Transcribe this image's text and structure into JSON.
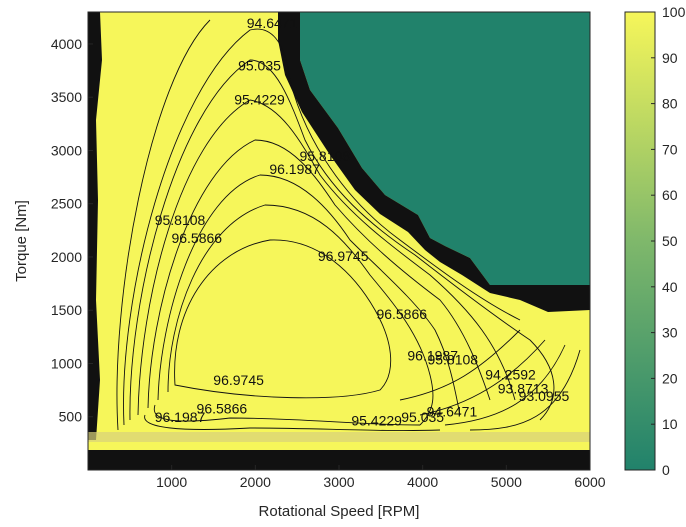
{
  "chart_data": {
    "type": "contour",
    "xlabel": "Rotational Speed [RPM]",
    "ylabel": "Torque [Nm]",
    "xlim": [
      0,
      6000
    ],
    "ylim": [
      0,
      4300
    ],
    "xticks": [
      "1000",
      "2000",
      "3000",
      "4000",
      "5000",
      "6000"
    ],
    "yticks": [
      "500",
      "1000",
      "1500",
      "2000",
      "2500",
      "3000",
      "3500",
      "4000"
    ],
    "colorbar": {
      "ticks": [
        "0",
        "10",
        "20",
        "30",
        "40",
        "50",
        "60",
        "70",
        "80",
        "90",
        "100"
      ],
      "range": [
        0,
        100
      ],
      "low_color": "#21826b",
      "high_color": "#f6f65a"
    },
    "contour_levels": [
      "94.6471",
      "95.035",
      "95.4229",
      "95.8108",
      "96.1987",
      "96.5866",
      "96.9745"
    ],
    "contour_labels": [
      {
        "text": "94.6471",
        "x": 2200,
        "y": 4150
      },
      {
        "text": "95.035",
        "x": 2050,
        "y": 3750
      },
      {
        "text": "95.4229",
        "x": 2050,
        "y": 3430
      },
      {
        "text": "95.8108",
        "x": 2830,
        "y": 2900
      },
      {
        "text": "96.1987",
        "x": 2470,
        "y": 2780
      },
      {
        "text": "96.5866",
        "x": 1300,
        "y": 2130
      },
      {
        "text": "96.9745",
        "x": 3050,
        "y": 1960
      },
      {
        "text": "96.5866",
        "x": 3750,
        "y": 1420
      },
      {
        "text": "96.1987",
        "x": 4120,
        "y": 1030
      },
      {
        "text": "95.8108",
        "x": 4360,
        "y": 990
      },
      {
        "text": "96.9745",
        "x": 1800,
        "y": 800
      },
      {
        "text": "96.5866",
        "x": 1600,
        "y": 530
      },
      {
        "text": "96.1987",
        "x": 1100,
        "y": 450
      },
      {
        "text": "95.4229",
        "x": 3450,
        "y": 420
      },
      {
        "text": "95.035",
        "x": 4000,
        "y": 450
      },
      {
        "text": "94.6471",
        "x": 4350,
        "y": 500
      },
      {
        "text": "95.8108",
        "x": 1100,
        "y": 2300
      },
      {
        "text": "94.2592",
        "x": 5050,
        "y": 850
      },
      {
        "text": "93.8713",
        "x": 5200,
        "y": 720
      },
      {
        "text": "93.0955",
        "x": 5450,
        "y": 650
      }
    ]
  }
}
